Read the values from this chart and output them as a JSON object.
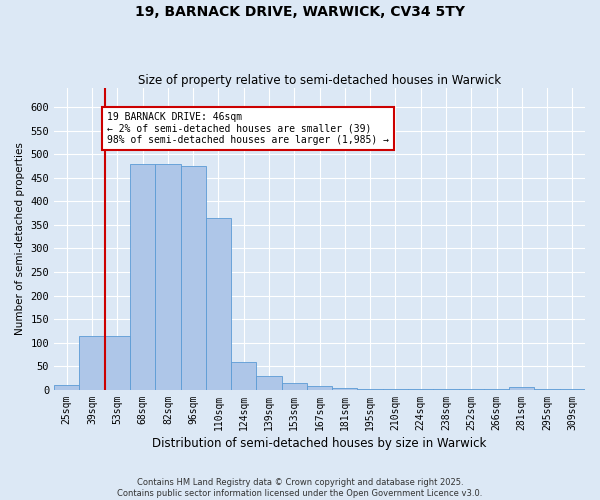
{
  "title": "19, BARNACK DRIVE, WARWICK, CV34 5TY",
  "subtitle": "Size of property relative to semi-detached houses in Warwick",
  "xlabel": "Distribution of semi-detached houses by size in Warwick",
  "ylabel": "Number of semi-detached properties",
  "categories": [
    "25sqm",
    "39sqm",
    "53sqm",
    "68sqm",
    "82sqm",
    "96sqm",
    "110sqm",
    "124sqm",
    "139sqm",
    "153sqm",
    "167sqm",
    "181sqm",
    "195sqm",
    "210sqm",
    "224sqm",
    "238sqm",
    "252sqm",
    "266sqm",
    "281sqm",
    "295sqm",
    "309sqm"
  ],
  "bar_heights": [
    10,
    115,
    115,
    480,
    480,
    475,
    365,
    60,
    30,
    15,
    8,
    4,
    3,
    3,
    2,
    2,
    2,
    2,
    6,
    2,
    2
  ],
  "bar_color": "#aec6e8",
  "bar_edge_color": "#5b9bd5",
  "annotation_text": "19 BARNACK DRIVE: 46sqm\n← 2% of semi-detached houses are smaller (39)\n98% of semi-detached houses are larger (1,985) →",
  "annotation_box_color": "#ffffff",
  "annotation_box_edge_color": "#cc0000",
  "property_line_color": "#cc0000",
  "ylim": [
    0,
    640
  ],
  "yticks": [
    0,
    50,
    100,
    150,
    200,
    250,
    300,
    350,
    400,
    450,
    500,
    550,
    600
  ],
  "footer_line1": "Contains HM Land Registry data © Crown copyright and database right 2025.",
  "footer_line2": "Contains public sector information licensed under the Open Government Licence v3.0.",
  "bg_color": "#dce8f5",
  "grid_color": "#ffffff"
}
